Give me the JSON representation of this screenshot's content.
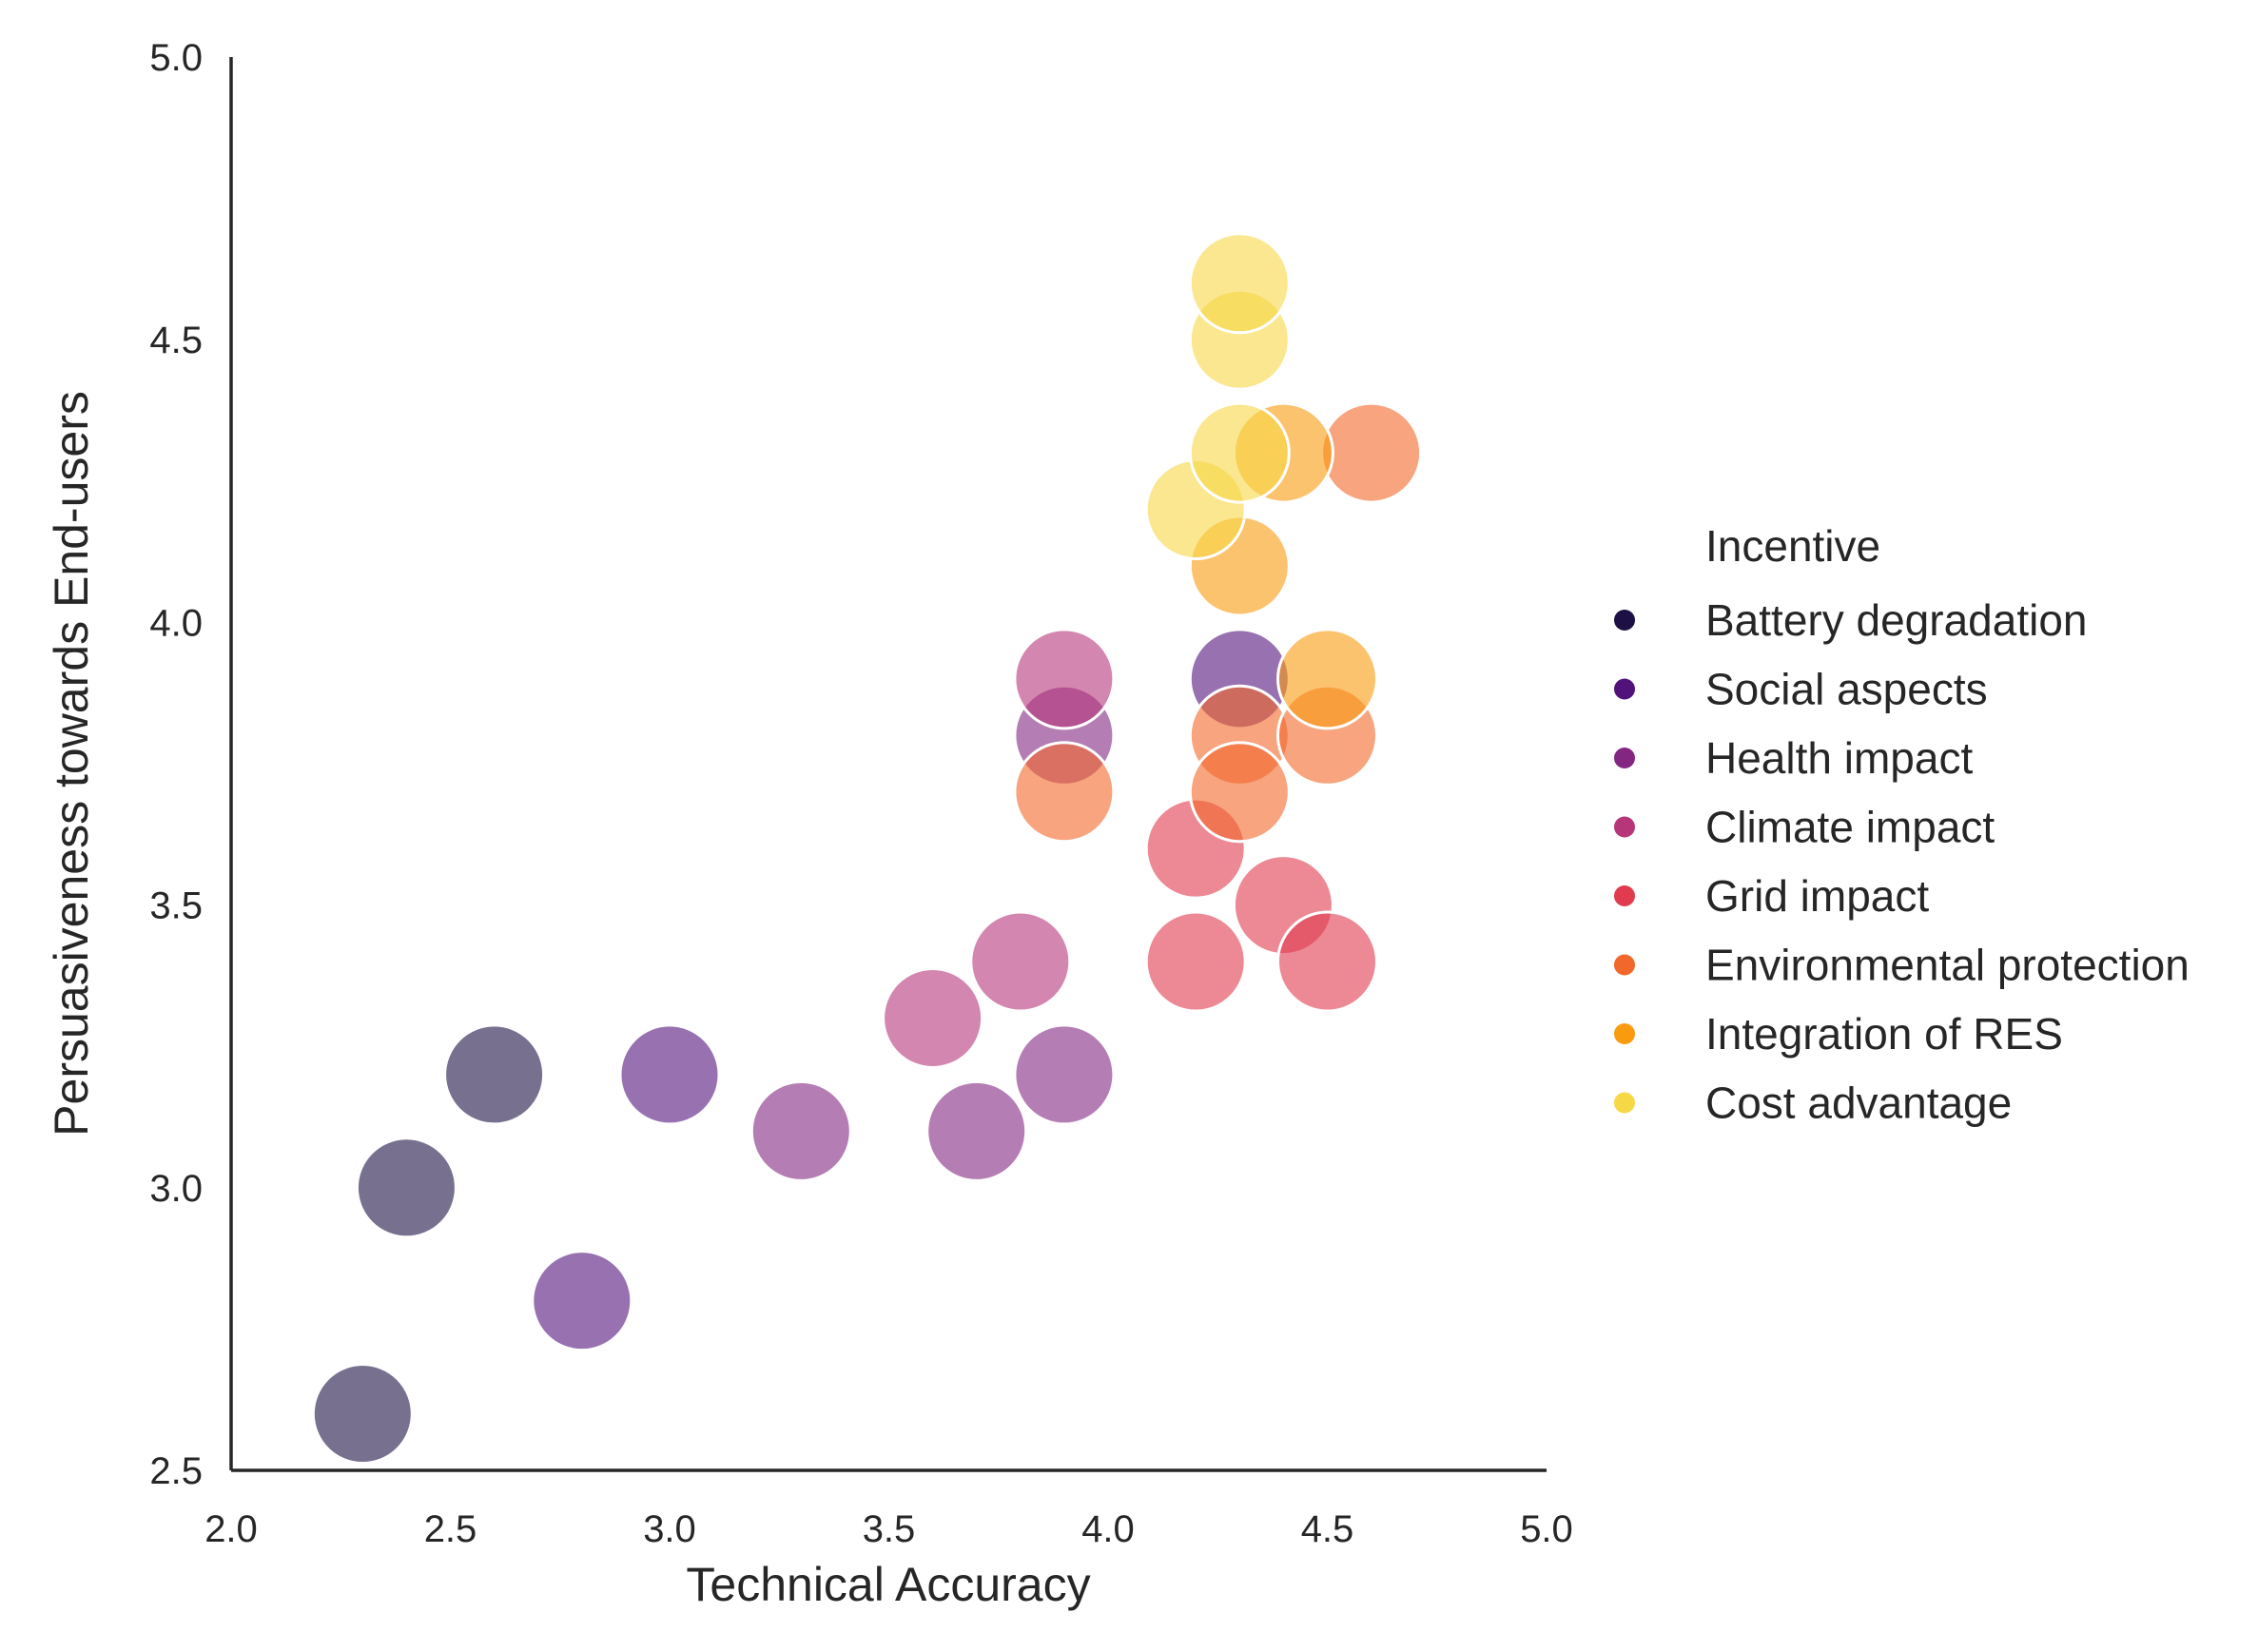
{
  "chart_data": {
    "type": "scatter",
    "title": "",
    "xlabel": "Technical Accuracy",
    "ylabel": "Persuasiveness towards End-users",
    "xlim": [
      2.0,
      5.0
    ],
    "ylim": [
      2.5,
      5.0
    ],
    "xticks": [
      "2.0",
      "2.5",
      "3.0",
      "3.5",
      "4.0",
      "4.5",
      "5.0"
    ],
    "yticks": [
      "2.5",
      "3.0",
      "3.5",
      "4.0",
      "4.5",
      "5.0"
    ],
    "grid": false,
    "legend": {
      "title": "Incentive",
      "placement": "right"
    },
    "series": [
      {
        "name": "Battery degradation",
        "color": "#1c1044",
        "points": [
          [
            2.3,
            2.6
          ],
          [
            2.4,
            3.0
          ],
          [
            2.6,
            3.2
          ]
        ]
      },
      {
        "name": "Social aspects",
        "color": "#51127c",
        "points": [
          [
            2.8,
            2.8
          ],
          [
            3.0,
            3.2
          ],
          [
            4.3,
            3.9
          ]
        ]
      },
      {
        "name": "Health impact",
        "color": "#822681",
        "points": [
          [
            3.3,
            3.1
          ],
          [
            3.7,
            3.1
          ],
          [
            3.9,
            3.2
          ],
          [
            3.9,
            3.8
          ]
        ]
      },
      {
        "name": "Climate impact",
        "color": "#b63679",
        "points": [
          [
            3.6,
            3.3
          ],
          [
            3.8,
            3.4
          ],
          [
            3.9,
            3.9
          ]
        ]
      },
      {
        "name": "Grid impact",
        "color": "#e03b4f",
        "points": [
          [
            4.2,
            3.4
          ],
          [
            4.2,
            3.6
          ],
          [
            4.4,
            3.5
          ],
          [
            4.5,
            3.4
          ]
        ]
      },
      {
        "name": "Environmental protection",
        "color": "#f1682a",
        "points": [
          [
            3.9,
            3.7
          ],
          [
            4.3,
            3.8
          ],
          [
            4.3,
            3.7
          ],
          [
            4.5,
            3.8
          ],
          [
            4.6,
            4.3
          ]
        ]
      },
      {
        "name": "Integration of RES",
        "color": "#fa9b0f",
        "points": [
          [
            4.3,
            4.1
          ],
          [
            4.4,
            4.3
          ],
          [
            4.5,
            3.9
          ]
        ]
      },
      {
        "name": "Cost advantage",
        "color": "#f6d746",
        "points": [
          [
            4.2,
            4.2
          ],
          [
            4.3,
            4.3
          ],
          [
            4.3,
            4.5
          ],
          [
            4.3,
            4.6
          ]
        ]
      }
    ]
  }
}
